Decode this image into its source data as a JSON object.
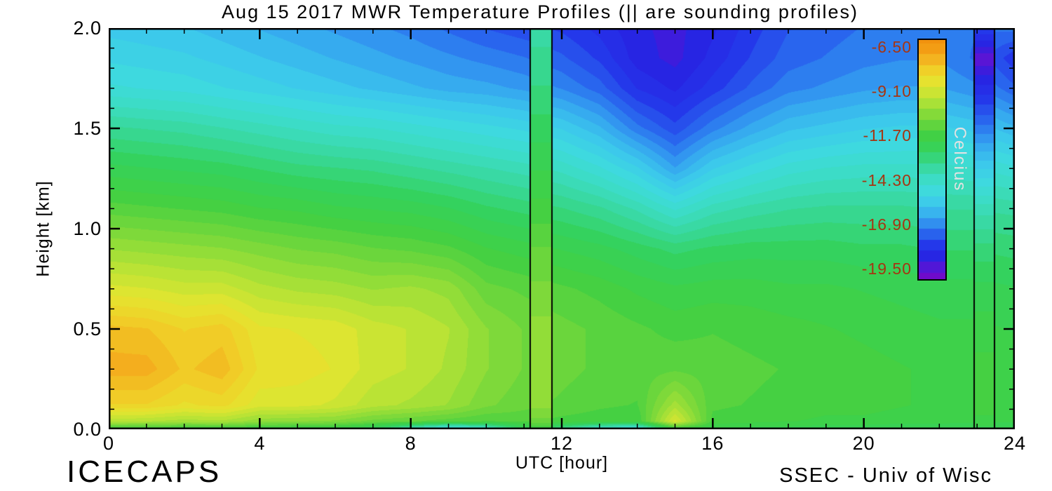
{
  "chart_data": {
    "type": "heatmap",
    "title": "Aug 15 2017 MWR Temperature Profiles (|| are sounding profiles)",
    "xlabel": "UTC [hour]",
    "ylabel": "Height [km]",
    "footer_left": "ICECAPS",
    "footer_right": "SSEC - Univ of Wisc",
    "axes": {
      "xlim": [
        0,
        24
      ],
      "ylim": [
        0,
        2
      ],
      "x_ticks": [
        0,
        4,
        8,
        12,
        16,
        20,
        24
      ],
      "x_tick_labels": [
        "0",
        "4",
        "8",
        "12",
        "16",
        "20",
        "24"
      ],
      "x_minor_step": 1,
      "y_ticks": [
        0,
        0.5,
        1,
        1.5,
        2
      ],
      "y_tick_labels": [
        "0.0",
        "0.5",
        "1.0",
        "1.5",
        "2.0"
      ],
      "y_minor_step": 0.1
    },
    "colorbar": {
      "label": "Celcius",
      "tick_labels": [
        "-6.50",
        "-9.10",
        "-11.70",
        "-14.30",
        "-16.90",
        "-19.50"
      ],
      "tick_values": [
        -6.5,
        -9.1,
        -11.7,
        -14.3,
        -16.9,
        -19.5
      ],
      "min": -20.2,
      "max": -6.0,
      "band_step": 0.65,
      "label_color": "#a63512",
      "unit_color": "#e2e2e2"
    },
    "band_step": 0.35,
    "x_hours": [
      0,
      1,
      2,
      3,
      4,
      5,
      6,
      7,
      8,
      9,
      10,
      11,
      12,
      13,
      14,
      15,
      16,
      17,
      18,
      19,
      20,
      21,
      22,
      23,
      24
    ],
    "y_heights_km": [
      0,
      0.04,
      0.12,
      0.3,
      0.5,
      0.7,
      0.9,
      1.1,
      1.3,
      1.5,
      1.7,
      1.85,
      2.0
    ],
    "temperature_c_columns": [
      [
        -11.8,
        -9.5,
        -7.9,
        -7.0,
        -7.4,
        -8.8,
        -10.0,
        -11.2,
        -12.3,
        -13.4,
        -14.8,
        -15.3,
        -15.7
      ],
      [
        -11.8,
        -9.6,
        -7.9,
        -7.0,
        -7.5,
        -8.9,
        -10.1,
        -11.3,
        -12.4,
        -13.5,
        -14.9,
        -15.4,
        -15.8
      ],
      [
        -11.9,
        -9.8,
        -8.3,
        -7.6,
        -7.9,
        -9.1,
        -10.2,
        -11.4,
        -12.5,
        -13.6,
        -15.0,
        -15.5,
        -15.9
      ],
      [
        -11.9,
        -9.7,
        -8.1,
        -7.3,
        -7.7,
        -9.1,
        -10.3,
        -11.5,
        -12.6,
        -13.8,
        -15.2,
        -15.7,
        -16.1
      ],
      [
        -12.0,
        -10.2,
        -8.8,
        -8.3,
        -8.5,
        -9.5,
        -10.5,
        -11.7,
        -12.8,
        -14.0,
        -15.4,
        -15.9,
        -16.3
      ],
      [
        -12.1,
        -10.3,
        -8.8,
        -8.4,
        -8.6,
        -9.7,
        -10.7,
        -11.8,
        -13.0,
        -14.2,
        -15.6,
        -16.1,
        -16.5
      ],
      [
        -12.2,
        -10.4,
        -9.0,
        -8.6,
        -8.7,
        -9.8,
        -10.8,
        -12.0,
        -13.1,
        -14.4,
        -15.8,
        -16.3,
        -16.7
      ],
      [
        -12.8,
        -10.8,
        -9.5,
        -9.1,
        -9.1,
        -10.0,
        -11.0,
        -12.1,
        -13.2,
        -14.5,
        -16.0,
        -16.5,
        -16.9
      ],
      [
        -14.5,
        -11.0,
        -9.7,
        -9.3,
        -9.3,
        -9.9,
        -11.1,
        -12.2,
        -13.4,
        -14.7,
        -16.2,
        -16.7,
        -17.1
      ],
      [
        -16.0,
        -11.2,
        -10.0,
        -9.7,
        -9.6,
        -10.1,
        -11.3,
        -12.4,
        -13.6,
        -14.9,
        -16.4,
        -16.9,
        -17.4
      ],
      [
        -15.0,
        -11.4,
        -10.6,
        -10.3,
        -10.3,
        -10.9,
        -11.7,
        -12.7,
        -13.8,
        -15.1,
        -16.5,
        -17.1,
        -17.7
      ],
      [
        -12.5,
        -11.3,
        -10.9,
        -10.7,
        -10.7,
        -11.1,
        -11.9,
        -12.9,
        -14.0,
        -15.3,
        -16.7,
        -17.3,
        -17.9
      ],
      [
        -13.5,
        -11.5,
        -11.1,
        -10.9,
        -10.9,
        -11.3,
        -12.1,
        -13.1,
        -14.3,
        -15.6,
        -17.0,
        -17.6,
        -18.1
      ],
      [
        -15.0,
        -11.6,
        -11.3,
        -11.1,
        -11.1,
        -11.5,
        -12.3,
        -13.4,
        -14.8,
        -16.2,
        -17.5,
        -18.1,
        -18.5
      ],
      [
        -15.5,
        -11.7,
        -11.4,
        -11.2,
        -11.3,
        -11.8,
        -12.6,
        -13.9,
        -15.5,
        -17.2,
        -18.4,
        -18.9,
        -19.0
      ],
      [
        -12.0,
        -8.8,
        -9.8,
        -11.1,
        -11.5,
        -12.0,
        -12.9,
        -14.6,
        -16.6,
        -17.9,
        -18.8,
        -19.2,
        -19.2
      ],
      [
        -12.2,
        -11.5,
        -11.3,
        -11.2,
        -11.4,
        -11.9,
        -12.7,
        -14.0,
        -15.6,
        -17.1,
        -18.2,
        -18.6,
        -18.8
      ],
      [
        -12.3,
        -11.6,
        -11.4,
        -11.3,
        -11.5,
        -11.9,
        -12.6,
        -13.7,
        -15.1,
        -16.5,
        -17.6,
        -18.0,
        -18.2
      ],
      [
        -12.3,
        -11.7,
        -11.5,
        -11.4,
        -11.6,
        -12.0,
        -12.6,
        -13.5,
        -14.7,
        -16.0,
        -17.1,
        -17.5,
        -17.7
      ],
      [
        -12.4,
        -11.8,
        -11.6,
        -11.5,
        -11.7,
        -12.0,
        -12.6,
        -13.4,
        -14.5,
        -15.8,
        -16.9,
        -17.3,
        -17.5
      ],
      [
        -12.4,
        -11.8,
        -11.6,
        -11.6,
        -11.8,
        -12.1,
        -12.7,
        -13.4,
        -14.4,
        -15.6,
        -16.7,
        -17.1,
        -17.3
      ],
      [
        -12.5,
        -11.9,
        -11.7,
        -11.7,
        -11.9,
        -12.2,
        -12.7,
        -13.4,
        -14.4,
        -15.5,
        -16.6,
        -17.0,
        -17.2
      ],
      [
        -12.5,
        -11.9,
        -11.8,
        -11.8,
        -12.0,
        -12.3,
        -12.8,
        -13.5,
        -14.4,
        -15.5,
        -16.6,
        -17.0,
        -17.2
      ],
      [
        -12.5,
        -12.0,
        -11.9,
        -11.9,
        -12.0,
        -12.3,
        -12.8,
        -13.5,
        -14.5,
        -15.7,
        -16.9,
        -17.4,
        -17.3
      ],
      [
        -12.5,
        -12.0,
        -11.9,
        -11.9,
        -12.1,
        -12.4,
        -12.9,
        -13.6,
        -14.8,
        -16.2,
        -17.6,
        -18.3,
        -17.2
      ]
    ],
    "soundings": [
      {
        "start_hour": 11.15,
        "end_hour": 11.72,
        "profile": [
          -11.8,
          -10.8,
          -10.2,
          -10.0,
          -10.2,
          -10.6,
          -11.0,
          -11.6,
          -12.1,
          -12.6,
          -13.1,
          -13.4,
          -13.6
        ]
      },
      {
        "start_hour": 22.9,
        "end_hour": 23.45,
        "profile": [
          -12.3,
          -11.8,
          -11.6,
          -11.6,
          -11.9,
          -12.3,
          -13.0,
          -14.0,
          -15.6,
          -17.2,
          -18.6,
          -19.7,
          -18.0
        ]
      }
    ],
    "colormap": [
      [
        -21.0,
        "#7a00c0"
      ],
      [
        -19.8,
        "#6a10d0"
      ],
      [
        -19.0,
        "#2822e2"
      ],
      [
        -18.2,
        "#2438ea"
      ],
      [
        -17.4,
        "#2a6cee"
      ],
      [
        -16.6,
        "#35a4f0"
      ],
      [
        -15.8,
        "#3cc8ec"
      ],
      [
        -15.0,
        "#3edade"
      ],
      [
        -14.2,
        "#3cdcc2"
      ],
      [
        -13.4,
        "#38d896"
      ],
      [
        -12.6,
        "#34d25e"
      ],
      [
        -11.6,
        "#42d042"
      ],
      [
        -10.6,
        "#78d83a"
      ],
      [
        -9.6,
        "#b2e236"
      ],
      [
        -8.6,
        "#e4e630"
      ],
      [
        -7.8,
        "#f0d028"
      ],
      [
        -7.0,
        "#f4ae1e"
      ],
      [
        -6.2,
        "#f2920e"
      ]
    ]
  }
}
